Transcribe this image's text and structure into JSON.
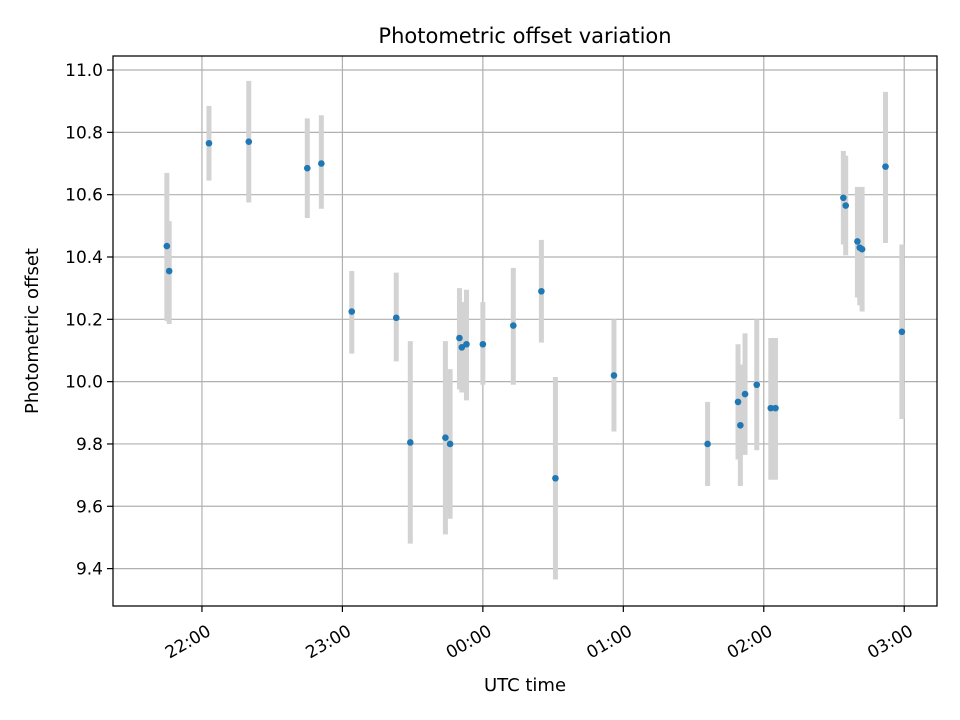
{
  "chart_data": {
    "type": "scatter",
    "title": "Photometric offset variation",
    "xlabel": "UTC time",
    "ylabel": "Photometric offset",
    "x_ticks": [
      "22:00",
      "23:00",
      "00:00",
      "01:00",
      "02:00",
      "03:00"
    ],
    "y_ticks": [
      "9.4",
      "9.6",
      "9.8",
      "10.0",
      "10.2",
      "10.4",
      "10.6",
      "10.8",
      "11.0"
    ],
    "xlim": [
      "21:22",
      "03:14"
    ],
    "ylim": [
      9.28,
      11.045
    ],
    "grid": true,
    "colors": {
      "points": "#1f77b4",
      "errorbars": "#d3d3d3",
      "grid": "#b0b0b0"
    },
    "points": [
      {
        "x": "21:45",
        "y": 10.435,
        "yerr_low": 10.195,
        "yerr_high": 10.67
      },
      {
        "x": "21:46",
        "y": 10.355,
        "yerr_low": 10.185,
        "yerr_high": 10.515
      },
      {
        "x": "22:03",
        "y": 10.765,
        "yerr_low": 10.645,
        "yerr_high": 10.885
      },
      {
        "x": "22:20",
        "y": 10.77,
        "yerr_low": 10.575,
        "yerr_high": 10.965
      },
      {
        "x": "22:45",
        "y": 10.685,
        "yerr_low": 10.525,
        "yerr_high": 10.845
      },
      {
        "x": "22:51",
        "y": 10.7,
        "yerr_low": 10.555,
        "yerr_high": 10.855
      },
      {
        "x": "23:04",
        "y": 10.225,
        "yerr_low": 10.09,
        "yerr_high": 10.355
      },
      {
        "x": "23:23",
        "y": 10.205,
        "yerr_low": 10.065,
        "yerr_high": 10.35
      },
      {
        "x": "23:29",
        "y": 9.805,
        "yerr_low": 9.48,
        "yerr_high": 10.13
      },
      {
        "x": "23:44",
        "y": 9.82,
        "yerr_low": 9.51,
        "yerr_high": 10.13
      },
      {
        "x": "23:46",
        "y": 9.8,
        "yerr_low": 9.56,
        "yerr_high": 10.04
      },
      {
        "x": "23:50",
        "y": 10.14,
        "yerr_low": 9.975,
        "yerr_high": 10.3
      },
      {
        "x": "23:51",
        "y": 10.11,
        "yerr_low": 9.965,
        "yerr_high": 10.255
      },
      {
        "x": "23:53",
        "y": 10.12,
        "yerr_low": 9.94,
        "yerr_high": 10.295
      },
      {
        "x": "00:00",
        "y": 10.12,
        "yerr_low": 9.99,
        "yerr_high": 10.255
      },
      {
        "x": "00:13",
        "y": 10.18,
        "yerr_low": 9.99,
        "yerr_high": 10.365
      },
      {
        "x": "00:25",
        "y": 10.29,
        "yerr_low": 10.125,
        "yerr_high": 10.455
      },
      {
        "x": "00:31",
        "y": 9.69,
        "yerr_low": 9.365,
        "yerr_high": 10.015
      },
      {
        "x": "00:56",
        "y": 10.02,
        "yerr_low": 9.84,
        "yerr_high": 10.2
      },
      {
        "x": "01:36",
        "y": 9.8,
        "yerr_low": 9.665,
        "yerr_high": 9.935
      },
      {
        "x": "01:49",
        "y": 9.935,
        "yerr_low": 9.75,
        "yerr_high": 10.12
      },
      {
        "x": "01:50",
        "y": 9.86,
        "yerr_low": 9.665,
        "yerr_high": 10.055
      },
      {
        "x": "01:52",
        "y": 9.96,
        "yerr_low": 9.765,
        "yerr_high": 10.155
      },
      {
        "x": "01:57",
        "y": 9.99,
        "yerr_low": 9.78,
        "yerr_high": 10.2
      },
      {
        "x": "02:03",
        "y": 9.915,
        "yerr_low": 9.685,
        "yerr_high": 10.14
      },
      {
        "x": "02:05",
        "y": 9.915,
        "yerr_low": 9.685,
        "yerr_high": 10.14
      },
      {
        "x": "02:34",
        "y": 10.59,
        "yerr_low": 10.44,
        "yerr_high": 10.74
      },
      {
        "x": "02:35",
        "y": 10.565,
        "yerr_low": 10.405,
        "yerr_high": 10.725
      },
      {
        "x": "02:40",
        "y": 10.45,
        "yerr_low": 10.27,
        "yerr_high": 10.625
      },
      {
        "x": "02:41",
        "y": 10.43,
        "yerr_low": 10.245,
        "yerr_high": 10.62
      },
      {
        "x": "02:42",
        "y": 10.425,
        "yerr_low": 10.225,
        "yerr_high": 10.625
      },
      {
        "x": "02:52",
        "y": 10.69,
        "yerr_low": 10.445,
        "yerr_high": 10.93
      },
      {
        "x": "02:59",
        "y": 10.16,
        "yerr_low": 9.88,
        "yerr_high": 10.44
      }
    ]
  }
}
